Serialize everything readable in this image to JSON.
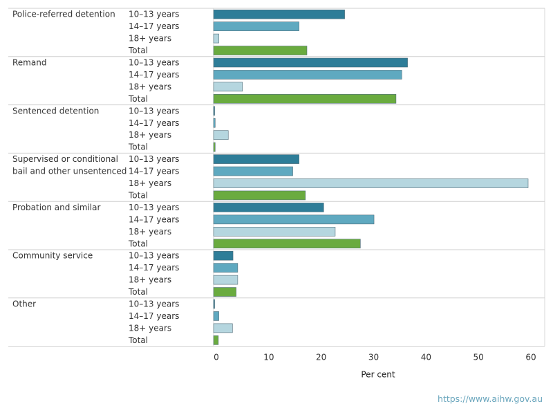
{
  "chart_data": {
    "type": "bar",
    "orientation": "horizontal",
    "xlabel": "Per cent",
    "xlim": [
      0,
      62
    ],
    "xticks": [
      0,
      10,
      20,
      30,
      40,
      50,
      60
    ],
    "subcategories": [
      "10–13 years",
      "14–17 years",
      "18+ years",
      "Total"
    ],
    "colors": {
      "10–13 years": "#2e7d98",
      "14–17 years": "#5fa9c0",
      "18+ years": "#b5d6df",
      "Total": "#6aab3f"
    },
    "groups": [
      {
        "label_lines": [
          "Police-referred detention"
        ],
        "values": [
          25.0,
          16.3,
          1.0,
          17.8
        ]
      },
      {
        "label_lines": [
          "Remand"
        ],
        "values": [
          37.0,
          35.9,
          5.5,
          34.8
        ]
      },
      {
        "label_lines": [
          "Sentenced detention"
        ],
        "values": [
          0.2,
          0.3,
          2.8,
          0.3
        ]
      },
      {
        "label_lines": [
          "Supervised or conditional",
          "bail and other unsentenced"
        ],
        "values": [
          16.3,
          15.1,
          60.0,
          17.5
        ]
      },
      {
        "label_lines": [
          "Probation and similar"
        ],
        "values": [
          21.0,
          30.6,
          23.2,
          28.0
        ]
      },
      {
        "label_lines": [
          "Community service"
        ],
        "values": [
          3.7,
          4.6,
          4.6,
          4.3
        ]
      },
      {
        "label_lines": [
          "Other"
        ],
        "values": [
          0.2,
          1.0,
          3.6,
          0.9
        ]
      }
    ]
  },
  "footer": {
    "source_url": "https://www.aihw.gov.au"
  }
}
